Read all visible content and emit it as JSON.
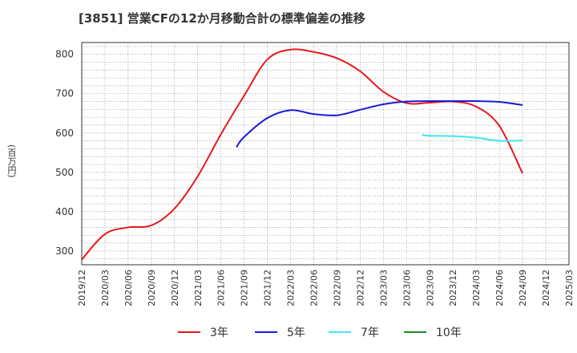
{
  "title": "[3851]  営業CFの12か月移動合計の標準偏差の推移",
  "chart_data": {
    "type": "line",
    "ylabel": "(百万円)",
    "xlabel": "",
    "ylim": [
      265,
      830
    ],
    "yticks": [
      300,
      400,
      500,
      600,
      700,
      800
    ],
    "x_ticks": [
      "2019/12",
      "2020/03",
      "2020/06",
      "2020/09",
      "2020/12",
      "2021/03",
      "2021/06",
      "2021/09",
      "2021/12",
      "2022/03",
      "2022/06",
      "2022/09",
      "2022/12",
      "2023/03",
      "2023/06",
      "2023/09",
      "2023/12",
      "2024/03",
      "2024/06",
      "2024/09",
      "2024/12",
      "2025/03"
    ],
    "grid": true,
    "legend_position": "bottom",
    "series": [
      {
        "name": "3年",
        "color": "#e8181b",
        "values": [
          [
            "2019/12",
            278
          ],
          [
            "2020/03",
            343
          ],
          [
            "2020/06",
            360
          ],
          [
            "2020/09",
            365
          ],
          [
            "2020/12",
            408
          ],
          [
            "2021/03",
            490
          ],
          [
            "2021/06",
            597
          ],
          [
            "2021/09",
            695
          ],
          [
            "2021/12",
            787
          ],
          [
            "2022/03",
            812
          ],
          [
            "2022/06",
            806
          ],
          [
            "2022/09",
            790
          ],
          [
            "2022/12",
            757
          ],
          [
            "2023/03",
            705
          ],
          [
            "2023/06",
            676
          ],
          [
            "2023/09",
            677
          ],
          [
            "2023/12",
            680
          ],
          [
            "2024/03",
            667
          ],
          [
            "2024/06",
            618
          ],
          [
            "2024/09",
            497
          ]
        ]
      },
      {
        "name": "5年",
        "color": "#1a1ad6",
        "values": [
          [
            "2021/08",
            564
          ],
          [
            "2021/09",
            590
          ],
          [
            "2021/12",
            638
          ],
          [
            "2022/03",
            658
          ],
          [
            "2022/06",
            648
          ],
          [
            "2022/09",
            645
          ],
          [
            "2022/12",
            659
          ],
          [
            "2023/03",
            673
          ],
          [
            "2023/06",
            680
          ],
          [
            "2023/09",
            681
          ],
          [
            "2023/12",
            681
          ],
          [
            "2024/03",
            681
          ],
          [
            "2024/06",
            679
          ],
          [
            "2024/09",
            671
          ]
        ]
      },
      {
        "name": "7年",
        "color": "#3ee6f0",
        "values": [
          [
            "2023/08",
            595
          ],
          [
            "2023/09",
            593
          ],
          [
            "2023/12",
            592
          ],
          [
            "2024/03",
            588
          ],
          [
            "2024/06",
            580
          ],
          [
            "2024/09",
            581
          ]
        ]
      },
      {
        "name": "10年",
        "color": "#1e8a1e",
        "values": []
      }
    ]
  }
}
